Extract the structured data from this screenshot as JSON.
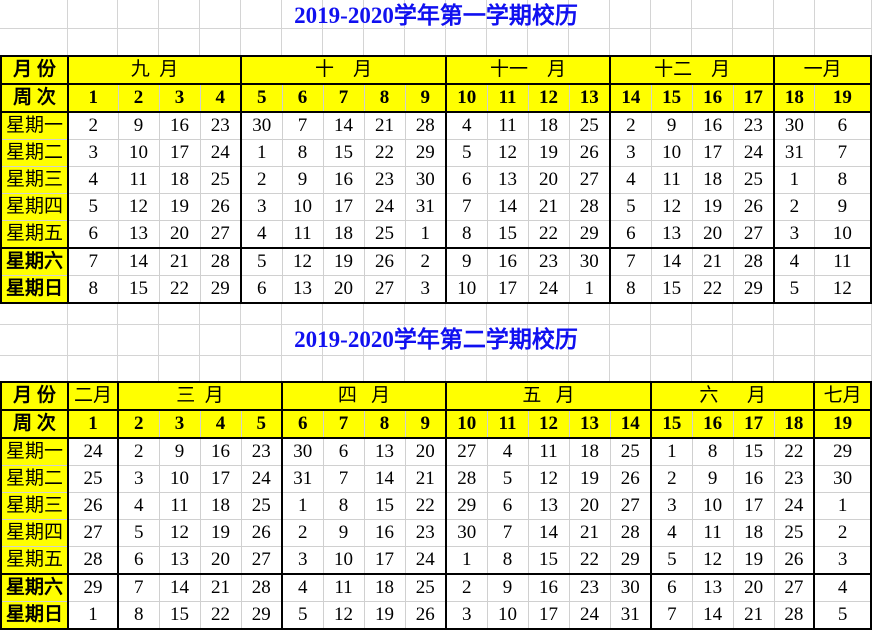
{
  "colors": {
    "highlight": "#ffff00",
    "title": "#1010f0",
    "weekend": "#ff2020",
    "text": "#000000"
  },
  "semesters": [
    {
      "title": "2019-2020学年第一学期校历",
      "month_label": "月 份",
      "week_label": "周 次",
      "months": [
        {
          "label": "九  月",
          "span": 4
        },
        {
          "label": "十    月",
          "span": 5
        },
        {
          "label": "十一    月",
          "span": 4
        },
        {
          "label": "十二    月",
          "span": 4
        },
        {
          "label": "一月",
          "span": 2
        }
      ],
      "weeks": [
        "1",
        "2",
        "3",
        "4",
        "5",
        "6",
        "7",
        "8",
        "9",
        "10",
        "11",
        "12",
        "13",
        "14",
        "15",
        "16",
        "17",
        "18",
        "19"
      ],
      "rows": [
        {
          "label": "星期一",
          "weekend": false,
          "days": [
            "2",
            "9",
            "16",
            "23",
            "30",
            "7",
            "14",
            "21",
            "28",
            "4",
            "11",
            "18",
            "25",
            "2",
            "9",
            "16",
            "23",
            "30",
            "6"
          ],
          "red": [
            5
          ]
        },
        {
          "label": "星期二",
          "weekend": false,
          "days": [
            "3",
            "10",
            "17",
            "24",
            "1",
            "8",
            "15",
            "22",
            "29",
            "5",
            "12",
            "19",
            "26",
            "3",
            "10",
            "17",
            "24",
            "31",
            "7"
          ],
          "red": [
            4
          ]
        },
        {
          "label": "星期三",
          "weekend": false,
          "days": [
            "4",
            "11",
            "18",
            "25",
            "2",
            "9",
            "16",
            "23",
            "30",
            "6",
            "13",
            "20",
            "27",
            "4",
            "11",
            "18",
            "25",
            "1",
            "8"
          ],
          "red": [
            4
          ]
        },
        {
          "label": "星期四",
          "weekend": false,
          "days": [
            "5",
            "12",
            "19",
            "26",
            "3",
            "10",
            "17",
            "24",
            "31",
            "7",
            "14",
            "21",
            "28",
            "5",
            "12",
            "19",
            "26",
            "2",
            "9"
          ],
          "red": [
            4
          ]
        },
        {
          "label": "星期五",
          "weekend": false,
          "days": [
            "6",
            "13",
            "20",
            "27",
            "4",
            "11",
            "18",
            "25",
            "1",
            "8",
            "15",
            "22",
            "29",
            "6",
            "13",
            "20",
            "27",
            "3",
            "10"
          ],
          "red": [
            4
          ]
        },
        {
          "label": "星期六",
          "weekend": true,
          "days": [
            "7",
            "14",
            "21",
            "28",
            "5",
            "12",
            "19",
            "26",
            "2",
            "9",
            "16",
            "23",
            "30",
            "7",
            "14",
            "21",
            "28",
            "4",
            "11"
          ],
          "red": []
        },
        {
          "label": "星期日",
          "weekend": true,
          "days": [
            "8",
            "15",
            "22",
            "29",
            "6",
            "13",
            "20",
            "27",
            "3",
            "10",
            "17",
            "24",
            "1",
            "8",
            "15",
            "22",
            "29",
            "5",
            "12"
          ],
          "red": []
        }
      ]
    },
    {
      "title": "2019-2020学年第二学期校历",
      "month_label": "月 份",
      "week_label": "周 次",
      "months": [
        {
          "label": "二月",
          "span": 1
        },
        {
          "label": "三  月",
          "span": 4
        },
        {
          "label": "四   月",
          "span": 4
        },
        {
          "label": "五   月",
          "span": 5
        },
        {
          "label": "六      月",
          "span": 4
        },
        {
          "label": "七月",
          "span": 1
        }
      ],
      "weeks": [
        "1",
        "2",
        "3",
        "4",
        "5",
        "6",
        "7",
        "8",
        "9",
        "10",
        "11",
        "12",
        "13",
        "14",
        "15",
        "16",
        "17",
        "18",
        "19"
      ],
      "rows": [
        {
          "label": "星期一",
          "weekend": false,
          "days": [
            "24",
            "2",
            "9",
            "16",
            "23",
            "30",
            "6",
            "13",
            "20",
            "27",
            "4",
            "11",
            "18",
            "25",
            "1",
            "8",
            "15",
            "22",
            "29"
          ],
          "red": []
        },
        {
          "label": "星期二",
          "weekend": false,
          "days": [
            "25",
            "3",
            "10",
            "17",
            "24",
            "31",
            "7",
            "14",
            "21",
            "28",
            "5",
            "12",
            "19",
            "26",
            "2",
            "9",
            "16",
            "23",
            "30"
          ],
          "red": []
        },
        {
          "label": "星期三",
          "weekend": false,
          "days": [
            "26",
            "4",
            "11",
            "18",
            "25",
            "1",
            "8",
            "15",
            "22",
            "29",
            "6",
            "13",
            "20",
            "27",
            "3",
            "10",
            "17",
            "24",
            "1"
          ],
          "red": []
        },
        {
          "label": "星期四",
          "weekend": false,
          "days": [
            "27",
            "5",
            "12",
            "19",
            "26",
            "2",
            "9",
            "16",
            "23",
            "30",
            "7",
            "14",
            "21",
            "28",
            "4",
            "11",
            "18",
            "25",
            "2"
          ],
          "red": []
        },
        {
          "label": "星期五",
          "weekend": false,
          "days": [
            "28",
            "6",
            "13",
            "20",
            "27",
            "3",
            "10",
            "17",
            "24",
            "1",
            "8",
            "15",
            "22",
            "29",
            "5",
            "12",
            "19",
            "26",
            "3"
          ],
          "red": []
        },
        {
          "label": "星期六",
          "weekend": true,
          "days": [
            "29",
            "7",
            "14",
            "21",
            "28",
            "4",
            "11",
            "18",
            "25",
            "2",
            "9",
            "16",
            "23",
            "30",
            "6",
            "13",
            "20",
            "27",
            "4"
          ],
          "red": []
        },
        {
          "label": "星期日",
          "weekend": true,
          "days": [
            "1",
            "8",
            "15",
            "22",
            "29",
            "5",
            "12",
            "19",
            "26",
            "3",
            "10",
            "17",
            "24",
            "31",
            "7",
            "14",
            "21",
            "28",
            "5"
          ],
          "red": []
        }
      ]
    }
  ]
}
